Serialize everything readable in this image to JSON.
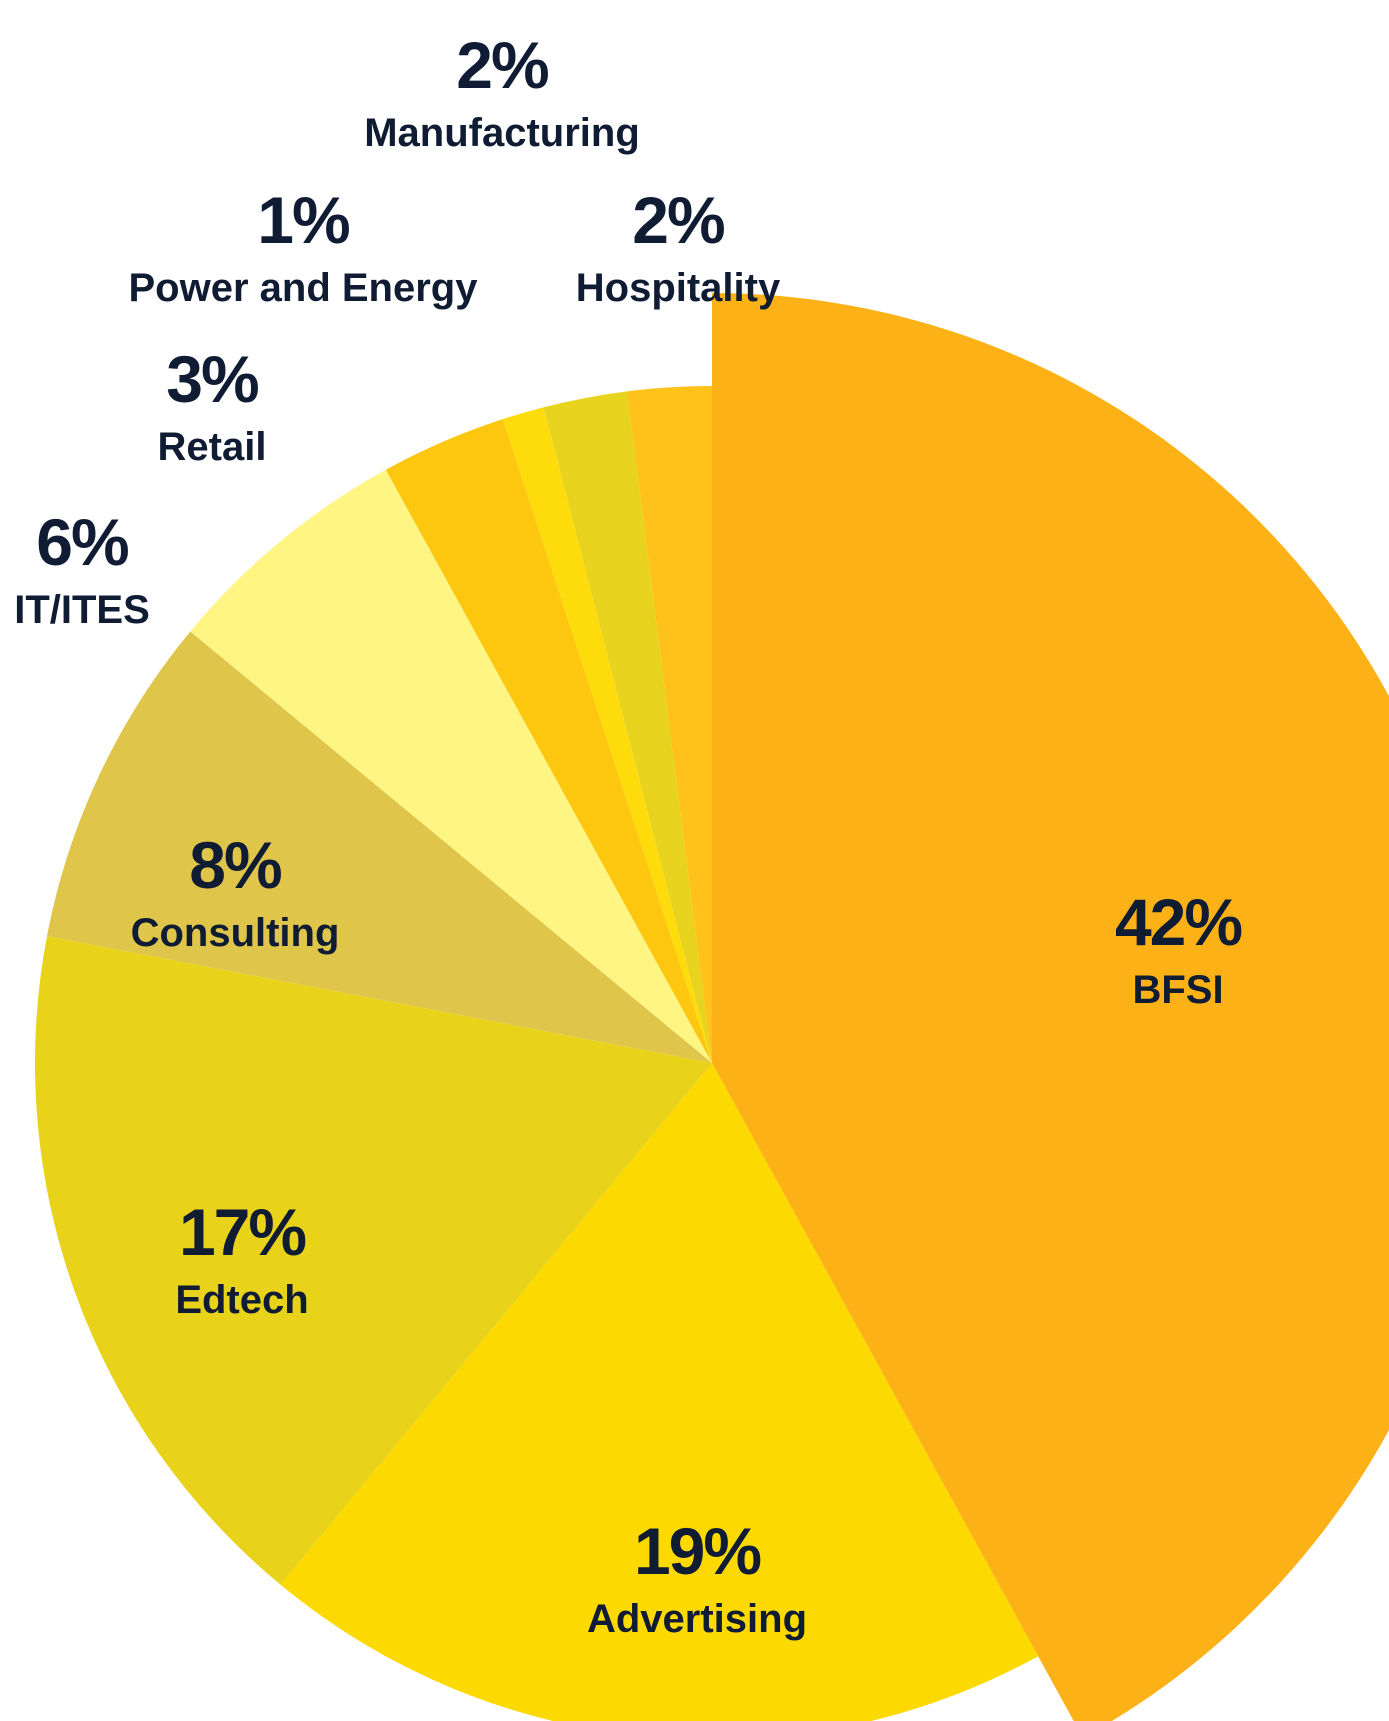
{
  "chart_data": {
    "type": "pie",
    "colors": {
      "text": "#0f1c33",
      "background": "#ffffff"
    },
    "slices": [
      {
        "label": "BFSI",
        "value": 42,
        "value_label": "42%",
        "color": "#fcb216"
      },
      {
        "label": "Advertising",
        "value": 19,
        "value_label": "19%",
        "color": "#fcd900"
      },
      {
        "label": "Edtech",
        "value": 17,
        "value_label": "17%",
        "color": "#e8d31a"
      },
      {
        "label": "Consulting",
        "value": 8,
        "value_label": "8%",
        "color": "#dfc64a"
      },
      {
        "label": "IT/ITES",
        "value": 6,
        "value_label": "6%",
        "color": "#fef583"
      },
      {
        "label": "Retail",
        "value": 3,
        "value_label": "3%",
        "color": "#fec70f"
      },
      {
        "label": "Power and Energy",
        "value": 1,
        "value_label": "1%",
        "color": "#fedb0b"
      },
      {
        "label": "Hospitality",
        "value": 2,
        "value_label": "2%",
        "color": "#e8d41f"
      },
      {
        "label": "Manufacturing",
        "value": 2,
        "value_label": "2%",
        "color": "#fec21a"
      }
    ]
  }
}
